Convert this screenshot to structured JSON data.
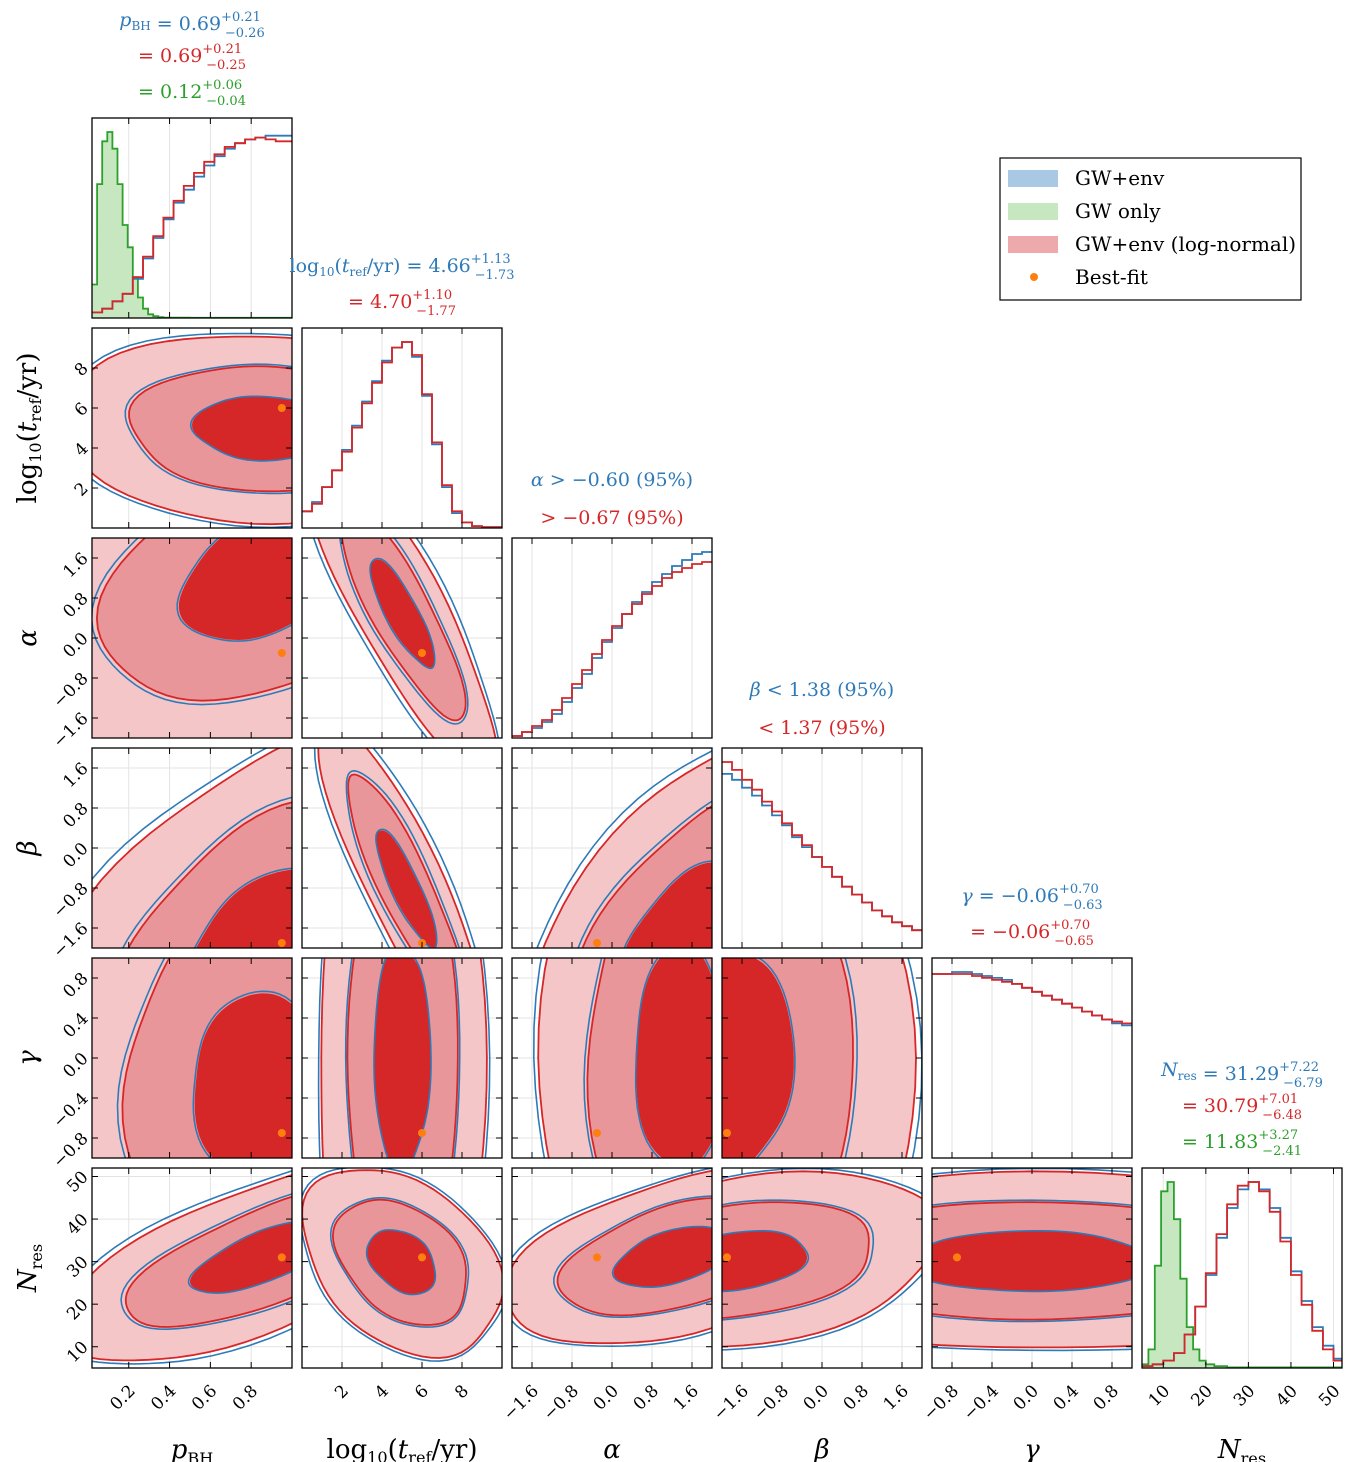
{
  "colors": {
    "blue": "#2e7ab8",
    "blue_fill": "#a8c8e4",
    "green": "#2ca02c",
    "green_fill": "#c7e7c1",
    "red": "#d62728",
    "red_fill_1sig": "#d62728",
    "red_fill_2sig": "#e8969a",
    "red_fill_3sig": "#f4c6c8",
    "orange": "#ff7f0e"
  },
  "legend": {
    "placement": "top-right",
    "items": [
      {
        "label": "GW+env",
        "style": "patch",
        "color": "#a8c8e4"
      },
      {
        "label": "GW only",
        "style": "patch",
        "color": "#c7e7c1"
      },
      {
        "label": "GW+env (log-normal)",
        "style": "patch",
        "color": "#eea9ac"
      },
      {
        "label": "Best-fit",
        "style": "dot",
        "color": "#ff7f0e"
      }
    ]
  },
  "chart_data": {
    "type": "corner",
    "parameters": [
      {
        "key": "p",
        "label": "p",
        "sub": "BH",
        "range": [
          0.02,
          1.0
        ],
        "ticks": [
          0.2,
          0.4,
          0.6,
          0.8
        ],
        "tick_labels": [
          "0.2",
          "0.4",
          "0.6",
          "0.8"
        ],
        "best_fit": 0.95
      },
      {
        "key": "t",
        "label": "log10(tref/yr)",
        "range": [
          0.0,
          10.0
        ],
        "ticks": [
          2,
          4,
          6,
          8
        ],
        "tick_labels": [
          "2",
          "4",
          "6",
          "8"
        ],
        "best_fit": 6.0
      },
      {
        "key": "a",
        "label": "α",
        "range": [
          -2.0,
          2.0
        ],
        "ticks": [
          -1.6,
          -0.8,
          0.0,
          0.8,
          1.6
        ],
        "tick_labels": [
          "−1.6",
          "−0.8",
          "0.0",
          "0.8",
          "1.6"
        ],
        "best_fit": -0.3
      },
      {
        "key": "b",
        "label": "β",
        "range": [
          -2.0,
          2.0
        ],
        "ticks": [
          -1.6,
          -0.8,
          0.0,
          0.8,
          1.6
        ],
        "tick_labels": [
          "−1.6",
          "−0.8",
          "0.0",
          "0.8",
          "1.6"
        ],
        "best_fit": -1.9
      },
      {
        "key": "g",
        "label": "γ",
        "range": [
          -1.0,
          1.0
        ],
        "ticks": [
          -0.8,
          -0.4,
          0.0,
          0.4,
          0.8
        ],
        "tick_labels": [
          "−0.8",
          "−0.4",
          "0.0",
          "0.4",
          "0.8"
        ],
        "best_fit": -0.75
      },
      {
        "key": "n",
        "label": "N",
        "sub": "res",
        "range": [
          5,
          52
        ],
        "ticks": [
          10,
          20,
          30,
          40,
          50
        ],
        "tick_labels": [
          "10",
          "20",
          "30",
          "40",
          "50"
        ],
        "best_fit": 31
      }
    ],
    "titles": [
      {
        "param": "p",
        "lines": [
          {
            "color": "blue",
            "prefix": "p",
            "sub": "BH",
            "rel": " = ",
            "value": "0.69",
            "plus": "+0.21",
            "minus": "−0.26"
          },
          {
            "color": "red",
            "prefix": "",
            "rel": "= ",
            "value": "0.69",
            "plus": "+0.21",
            "minus": "−0.25"
          },
          {
            "color": "green",
            "prefix": "",
            "rel": "= ",
            "value": "0.12",
            "plus": "+0.06",
            "minus": "−0.04"
          }
        ]
      },
      {
        "param": "t",
        "lines": [
          {
            "color": "blue",
            "prefix": "log10(tref/yr)",
            "rel": " = ",
            "value": "4.66",
            "plus": "+1.13",
            "minus": "−1.73"
          },
          {
            "color": "red",
            "prefix": "",
            "rel": "= ",
            "value": "4.70",
            "plus": "+1.10",
            "minus": "−1.77"
          }
        ]
      },
      {
        "param": "a",
        "lines": [
          {
            "color": "blue",
            "prefix": "α",
            "rel": " > ",
            "value": "−0.60 (95%)"
          },
          {
            "color": "red",
            "prefix": "",
            "rel": "> ",
            "value": "−0.67 (95%)"
          }
        ]
      },
      {
        "param": "b",
        "lines": [
          {
            "color": "blue",
            "prefix": "β",
            "rel": " < ",
            "value": "1.38 (95%)"
          },
          {
            "color": "red",
            "prefix": "",
            "rel": "< ",
            "value": "1.37 (95%)"
          }
        ]
      },
      {
        "param": "g",
        "lines": [
          {
            "color": "blue",
            "prefix": "γ",
            "rel": " = ",
            "value": "−0.06",
            "plus": "+0.70",
            "minus": "−0.63"
          },
          {
            "color": "red",
            "prefix": "",
            "rel": "= ",
            "value": "−0.06",
            "plus": "+0.70",
            "minus": "−0.65"
          }
        ]
      },
      {
        "param": "n",
        "lines": [
          {
            "color": "blue",
            "prefix": "N",
            "sub": "res",
            "rel": " = ",
            "value": "31.29",
            "plus": "+7.22",
            "minus": "−6.79"
          },
          {
            "color": "red",
            "prefix": "",
            "rel": "= ",
            "value": "30.79",
            "plus": "+7.01",
            "minus": "−6.48"
          },
          {
            "color": "green",
            "prefix": "",
            "rel": "= ",
            "value": "11.83",
            "plus": "+3.27",
            "minus": "−2.41"
          }
        ]
      }
    ],
    "histograms": {
      "p": {
        "bin_edges": [
          0.02,
          0.07,
          0.12,
          0.17,
          0.22,
          0.27,
          0.32,
          0.37,
          0.42,
          0.47,
          0.52,
          0.57,
          0.62,
          0.67,
          0.72,
          0.77,
          0.82,
          0.87,
          0.92,
          1.0
        ],
        "blue": [
          0.03,
          0.05,
          0.09,
          0.13,
          0.21,
          0.32,
          0.43,
          0.53,
          0.62,
          0.69,
          0.76,
          0.82,
          0.87,
          0.91,
          0.94,
          0.96,
          0.97,
          0.98,
          0.98
        ],
        "red": [
          0.03,
          0.05,
          0.09,
          0.13,
          0.22,
          0.33,
          0.44,
          0.54,
          0.63,
          0.71,
          0.78,
          0.84,
          0.88,
          0.92,
          0.94,
          0.96,
          0.97,
          0.96,
          0.95
        ],
        "green_edges": [
          0.02,
          0.045,
          0.07,
          0.095,
          0.12,
          0.145,
          0.17,
          0.195,
          0.22,
          0.245,
          0.27,
          0.295,
          0.32,
          0.345,
          0.37,
          0.5,
          1.0
        ],
        "green": [
          0.18,
          0.72,
          0.95,
          1.0,
          0.91,
          0.72,
          0.5,
          0.38,
          0.22,
          0.11,
          0.05,
          0.02,
          0.01,
          0.005,
          0.002,
          0.001
        ]
      },
      "t": {
        "bin_edges": [
          0.0,
          0.5,
          1.0,
          1.5,
          2.0,
          2.5,
          3.0,
          3.5,
          4.0,
          4.5,
          5.0,
          5.5,
          6.0,
          6.5,
          7.0,
          7.5,
          8.0,
          8.5,
          9.0,
          10.0
        ],
        "blue": [
          0.09,
          0.14,
          0.22,
          0.31,
          0.42,
          0.55,
          0.68,
          0.79,
          0.9,
          0.97,
          1.0,
          0.92,
          0.71,
          0.45,
          0.22,
          0.08,
          0.03,
          0.01,
          0.005
        ],
        "red": [
          0.09,
          0.13,
          0.22,
          0.31,
          0.41,
          0.54,
          0.67,
          0.78,
          0.89,
          0.97,
          1.0,
          0.93,
          0.72,
          0.46,
          0.23,
          0.09,
          0.03,
          0.01,
          0.005
        ]
      },
      "a": {
        "bin_edges": [
          -2.0,
          -1.8,
          -1.6,
          -1.4,
          -1.2,
          -1.0,
          -0.8,
          -0.6,
          -0.4,
          -0.2,
          0.0,
          0.2,
          0.4,
          0.6,
          0.8,
          1.0,
          1.2,
          1.4,
          1.6,
          1.8,
          2.0
        ],
        "blue": [
          0.01,
          0.03,
          0.05,
          0.08,
          0.12,
          0.18,
          0.25,
          0.32,
          0.4,
          0.48,
          0.55,
          0.62,
          0.68,
          0.73,
          0.78,
          0.82,
          0.86,
          0.89,
          0.92,
          0.93
        ],
        "red": [
          0.01,
          0.03,
          0.06,
          0.09,
          0.14,
          0.2,
          0.27,
          0.34,
          0.42,
          0.49,
          0.56,
          0.62,
          0.67,
          0.72,
          0.76,
          0.8,
          0.83,
          0.85,
          0.87,
          0.88
        ]
      },
      "b": {
        "bin_edges": [
          -2.0,
          -1.8,
          -1.6,
          -1.4,
          -1.2,
          -1.0,
          -0.8,
          -0.6,
          -0.4,
          -0.2,
          0.0,
          0.2,
          0.4,
          0.6,
          0.8,
          1.0,
          1.2,
          1.4,
          1.6,
          1.8,
          2.0
        ],
        "blue": [
          0.88,
          0.85,
          0.81,
          0.77,
          0.72,
          0.67,
          0.62,
          0.56,
          0.51,
          0.46,
          0.41,
          0.36,
          0.31,
          0.27,
          0.23,
          0.19,
          0.16,
          0.13,
          0.11,
          0.09
        ],
        "red": [
          0.94,
          0.9,
          0.85,
          0.8,
          0.74,
          0.69,
          0.63,
          0.57,
          0.52,
          0.46,
          0.41,
          0.36,
          0.31,
          0.27,
          0.23,
          0.19,
          0.16,
          0.13,
          0.11,
          0.09
        ]
      },
      "g": {
        "bin_edges": [
          -1.0,
          -0.9,
          -0.8,
          -0.7,
          -0.6,
          -0.5,
          -0.4,
          -0.3,
          -0.2,
          -0.1,
          0.0,
          0.1,
          0.2,
          0.3,
          0.4,
          0.5,
          0.6,
          0.7,
          0.8,
          0.9,
          1.0
        ],
        "blue": [
          0.93,
          0.93,
          0.94,
          0.94,
          0.93,
          0.92,
          0.91,
          0.9,
          0.88,
          0.86,
          0.84,
          0.82,
          0.8,
          0.78,
          0.76,
          0.74,
          0.72,
          0.7,
          0.68,
          0.67
        ],
        "red": [
          0.93,
          0.93,
          0.93,
          0.93,
          0.92,
          0.91,
          0.9,
          0.89,
          0.88,
          0.86,
          0.84,
          0.82,
          0.8,
          0.78,
          0.76,
          0.74,
          0.72,
          0.7,
          0.69,
          0.68
        ]
      },
      "n": {
        "bin_edges": [
          5,
          7.5,
          10,
          12.5,
          15,
          17.5,
          20,
          22.5,
          25,
          27.5,
          30,
          32.5,
          35,
          37.5,
          40,
          42.5,
          45,
          47.5,
          50,
          52
        ],
        "blue": [
          0.01,
          0.02,
          0.04,
          0.08,
          0.18,
          0.33,
          0.5,
          0.7,
          0.86,
          0.96,
          1.0,
          0.96,
          0.86,
          0.7,
          0.52,
          0.36,
          0.22,
          0.12,
          0.05
        ],
        "red": [
          0.01,
          0.02,
          0.04,
          0.08,
          0.18,
          0.33,
          0.51,
          0.72,
          0.88,
          0.98,
          1.0,
          0.95,
          0.84,
          0.68,
          0.5,
          0.34,
          0.2,
          0.1,
          0.04
        ],
        "green_edges": [
          5,
          6.5,
          8,
          9.5,
          11,
          12.5,
          14,
          15.5,
          17,
          18.5,
          20,
          22,
          25,
          52
        ],
        "green": [
          0.02,
          0.1,
          0.55,
          0.95,
          1.0,
          0.8,
          0.48,
          0.22,
          0.1,
          0.04,
          0.02,
          0.01,
          0.003
        ]
      }
    },
    "contours_2d": {
      "t|p": {
        "center": [
          0.85,
          5.0
        ],
        "sigma": [
          0.35,
          1.7
        ],
        "rho": -0.05
      },
      "a|p": {
        "center": [
          0.85,
          1.2
        ],
        "sigma": [
          0.42,
          1.35
        ],
        "rho": 0.35
      },
      "a|t": {
        "center": [
          5.0,
          0.5
        ],
        "sigma": [
          1.7,
          1.15
        ],
        "rho": -0.85
      },
      "b|p": {
        "center": [
          0.85,
          -1.9
        ],
        "sigma": [
          0.38,
          1.55
        ],
        "rho": 0.45
      },
      "b|t": {
        "center": [
          5.2,
          -0.8
        ],
        "sigma": [
          1.6,
          1.25
        ],
        "rho": -0.88
      },
      "b|a": {
        "center": [
          1.3,
          -1.7
        ],
        "sigma": [
          1.2,
          1.5
        ],
        "rho": 0.65
      },
      "g|p": {
        "center": [
          0.85,
          -0.3
        ],
        "sigma": [
          0.36,
          1.0
        ],
        "rho": 0.0
      },
      "g|t": {
        "center": [
          5.0,
          0.0
        ],
        "sigma": [
          1.5,
          1.2
        ],
        "rho": 0.0
      },
      "g|a": {
        "center": [
          1.4,
          0.0
        ],
        "sigma": [
          1.0,
          1.2
        ],
        "rho": 0.0
      },
      "g|b": {
        "center": [
          -1.8,
          0.0
        ],
        "sigma": [
          1.3,
          1.2
        ],
        "rho": 0.0
      },
      "n|p": {
        "center": [
          0.85,
          31.0
        ],
        "sigma": [
          0.36,
          9.0
        ],
        "rho": 0.7
      },
      "n|t": {
        "center": [
          5.0,
          30.0
        ],
        "sigma": [
          1.8,
          8.0
        ],
        "rho": -0.35
      },
      "n|a": {
        "center": [
          1.2,
          31.0
        ],
        "sigma": [
          1.2,
          7.5
        ],
        "rho": 0.45
      },
      "n|b": {
        "center": [
          -1.7,
          30.0
        ],
        "sigma": [
          1.5,
          7.5
        ],
        "rho": 0.3
      },
      "n|g": {
        "center": [
          0.0,
          30.0
        ],
        "sigma": [
          1.3,
          7.5
        ],
        "rho": 0.0
      }
    },
    "contour_levels_sigma": [
      1,
      2,
      3
    ],
    "grid": true
  }
}
